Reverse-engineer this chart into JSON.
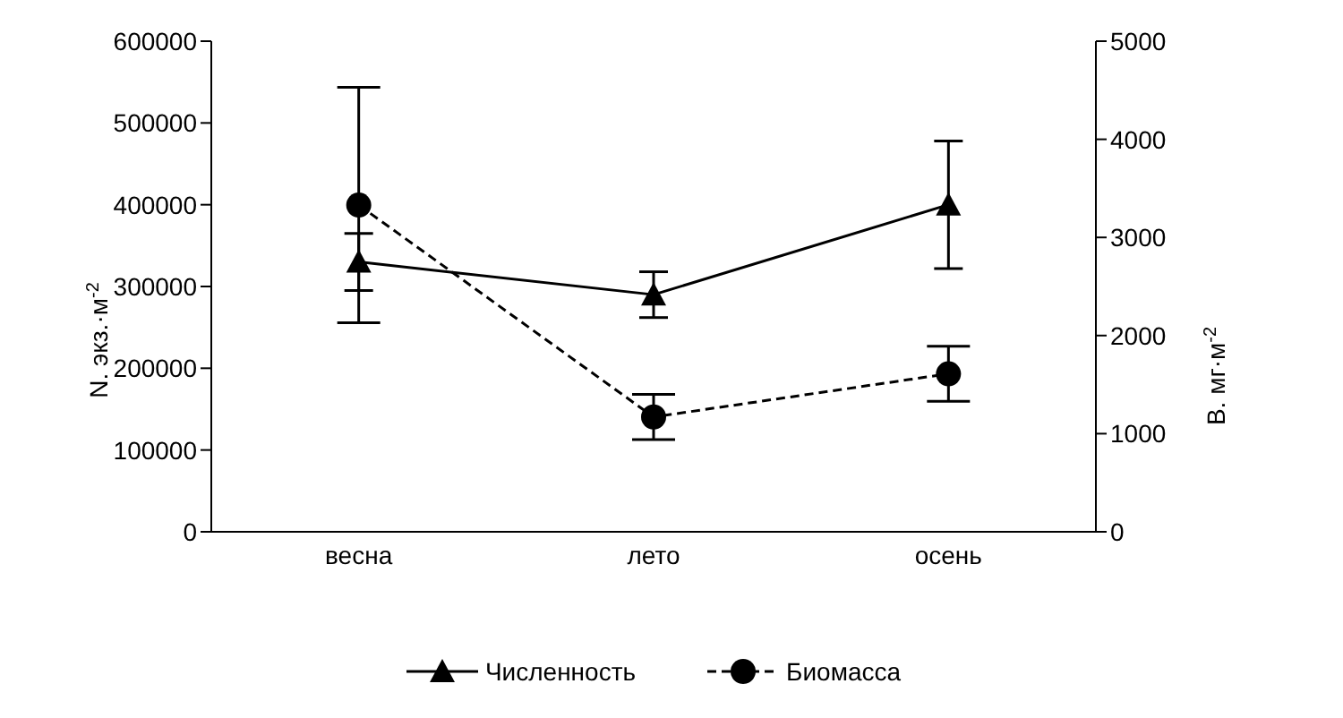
{
  "chart_data": {
    "type": "line",
    "categories": [
      "весна",
      "лето",
      "осень"
    ],
    "ylabel": "N. экз.·м$^{-2}$",
    "y2label": "B. мг·м$^{-2}$",
    "ylim": [
      0,
      600000
    ],
    "yticks": [
      0,
      100000,
      200000,
      300000,
      400000,
      500000,
      600000
    ],
    "y2lim": [
      0,
      5000
    ],
    "y2ticks": [
      0,
      1000,
      2000,
      3000,
      4000,
      5000
    ],
    "grid": false,
    "legend": "bottom",
    "series": [
      {
        "name": "Численность",
        "color": "#000000",
        "values": [
          330000,
          290000,
          400000
        ],
        "errors": [
          35000,
          28000,
          78000
        ],
        "marker": "triangle",
        "line_style": "solid"
      },
      {
        "name": "Биомасса",
        "color": "#000000",
        "values": [
          3330,
          1170,
          1610
        ],
        "errors": [
          1200,
          230,
          280
        ],
        "marker": "circle",
        "line_style": "dashed",
        "axis": "y2"
      }
    ]
  }
}
